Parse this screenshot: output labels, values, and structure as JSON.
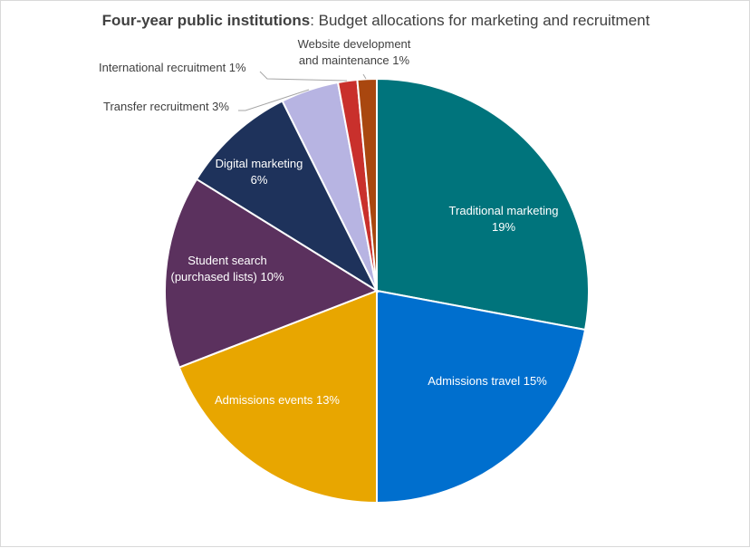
{
  "chart_data": {
    "type": "pie",
    "title_bold": "Four-year public institutions",
    "title_rest": ": Budget allocations for marketing and recruitment",
    "start_angle_deg": 0,
    "direction": "clockwise",
    "slices": [
      {
        "label_lines": [
          "Traditional marketing",
          "19%"
        ],
        "value": 19,
        "color": "#00747c",
        "label_color": "#ffffff",
        "label_pos": "inside"
      },
      {
        "label_lines": [
          "Admissions travel 15%"
        ],
        "value": 15,
        "color": "#006fce",
        "label_color": "#ffffff",
        "label_pos": "inside"
      },
      {
        "label_lines": [
          "Admissions events 13%"
        ],
        "value": 13,
        "color": "#e8a600",
        "label_color": "#ffffff",
        "label_pos": "inside"
      },
      {
        "label_lines": [
          "Student search",
          "(purchased lists) 10%"
        ],
        "value": 10,
        "color": "#5b315e",
        "label_color": "#ffffff",
        "label_pos": "inside"
      },
      {
        "label_lines": [
          "Digital marketing",
          "6%"
        ],
        "value": 6,
        "color": "#1e325b",
        "label_color": "#ffffff",
        "label_pos": "inside"
      },
      {
        "label_lines": [
          "Transfer recruitment 3%"
        ],
        "value": 3,
        "color": "#b7b4e2",
        "label_color": "#404040",
        "label_pos": "outside"
      },
      {
        "label_lines": [
          "International recruitment 1%"
        ],
        "value": 1,
        "color": "#c9302c",
        "label_color": "#404040",
        "label_pos": "outside"
      },
      {
        "label_lines": [
          "Website development",
          "and maintenance 1%"
        ],
        "value": 1,
        "color": "#a9470f",
        "label_color": "#404040",
        "label_pos": "outside"
      }
    ]
  }
}
